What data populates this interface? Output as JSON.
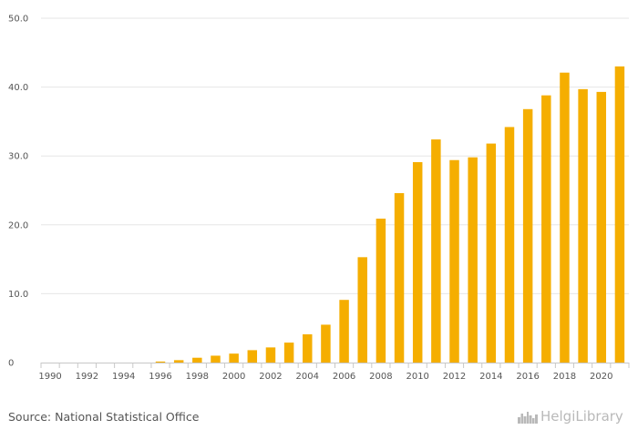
{
  "colors": {
    "bar": "#F5AE00",
    "grid": "#e6e6e6",
    "axis": "#c8c8c8",
    "text": "#555555"
  },
  "chart_data": {
    "type": "bar",
    "title": "",
    "xlabel": "",
    "ylabel": "",
    "ylim": [
      0,
      50
    ],
    "yticks": [
      0,
      10,
      20,
      30,
      40,
      50
    ],
    "ytick_labels": [
      "0",
      "10.0",
      "20.0",
      "30.0",
      "40.0",
      "50.0"
    ],
    "categories": [
      "1990",
      "1991",
      "1992",
      "1993",
      "1994",
      "1995",
      "1996",
      "1997",
      "1998",
      "1999",
      "2000",
      "2001",
      "2002",
      "2003",
      "2004",
      "2005",
      "2006",
      "2007",
      "2008",
      "2009",
      "2010",
      "2011",
      "2012",
      "2013",
      "2014",
      "2015",
      "2016",
      "2017",
      "2018",
      "2019",
      "2020",
      "2021"
    ],
    "xtick_labels": [
      "1990",
      "1992",
      "1994",
      "1996",
      "1998",
      "2000",
      "2002",
      "2004",
      "2006",
      "2008",
      "2010",
      "2012",
      "2014",
      "2016",
      "2018",
      "2020"
    ],
    "values": [
      0,
      0,
      0,
      0,
      0,
      0,
      0.15,
      0.35,
      0.7,
      1.0,
      1.3,
      1.8,
      2.2,
      2.9,
      4.1,
      5.5,
      9.1,
      15.3,
      20.9,
      24.6,
      29.1,
      32.4,
      29.4,
      29.8,
      31.8,
      34.2,
      36.8,
      38.8,
      42.1,
      39.7,
      39.3,
      43.0
    ],
    "grid": true
  },
  "footer": {
    "source": "Source: National Statistical Office",
    "logo_text": "HelgiLibrary",
    "logo_icon": "city-skyline-icon"
  }
}
